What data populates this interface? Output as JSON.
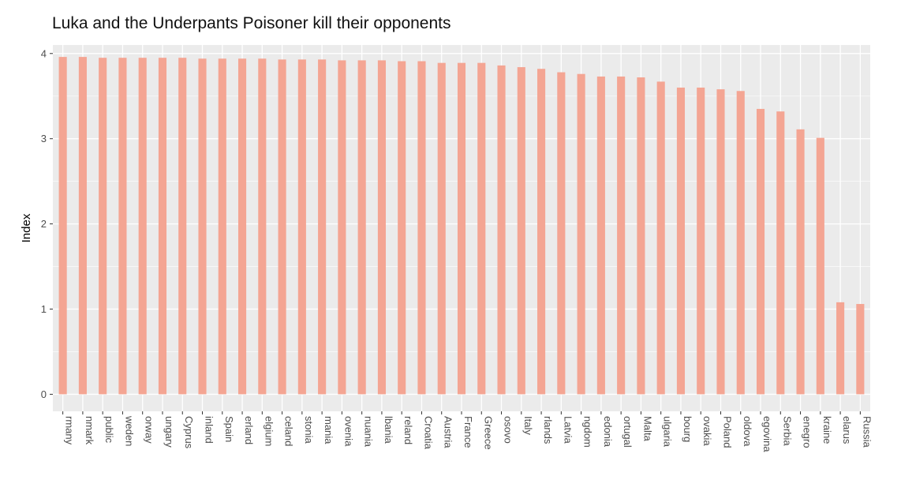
{
  "chart_data": {
    "type": "bar",
    "title": "Luka and the Underpants Poisoner kill their opponents",
    "xlabel": "",
    "ylabel": "Index",
    "ylim": [
      -0.2,
      4.1
    ],
    "yticks": [
      0,
      1,
      2,
      3,
      4
    ],
    "grid": true,
    "legend": "none",
    "bar_color": "#F4A593",
    "panel_color": "#EBEBEB",
    "categories": [
      "rmany",
      "nmark",
      "public",
      "weden",
      "orway",
      "ungary",
      "Cyprus",
      "inland",
      "Spain",
      "erland",
      "elgium",
      "celand",
      "stonia",
      "mania",
      "ovenia",
      "nuania",
      "lbania",
      "reland",
      "Croatia",
      "Austria",
      "France",
      "Greece",
      "osovo",
      "Italy",
      "rlands",
      "Latvia",
      "ngdom",
      "edonia",
      "ortugal",
      "Malta",
      "ulgaria",
      "bourg",
      "ovakia",
      "Poland",
      "oldova",
      "egovina",
      "Serbia",
      "enegro",
      "kraine",
      "elarus",
      "Russia"
    ],
    "values": [
      3.96,
      3.96,
      3.95,
      3.95,
      3.95,
      3.95,
      3.95,
      3.94,
      3.94,
      3.94,
      3.94,
      3.93,
      3.93,
      3.93,
      3.92,
      3.92,
      3.92,
      3.91,
      3.91,
      3.89,
      3.89,
      3.89,
      3.86,
      3.84,
      3.82,
      3.78,
      3.76,
      3.73,
      3.73,
      3.72,
      3.67,
      3.6,
      3.6,
      3.58,
      3.56,
      3.35,
      3.32,
      3.11,
      3.01,
      1.08,
      1.06
    ]
  }
}
